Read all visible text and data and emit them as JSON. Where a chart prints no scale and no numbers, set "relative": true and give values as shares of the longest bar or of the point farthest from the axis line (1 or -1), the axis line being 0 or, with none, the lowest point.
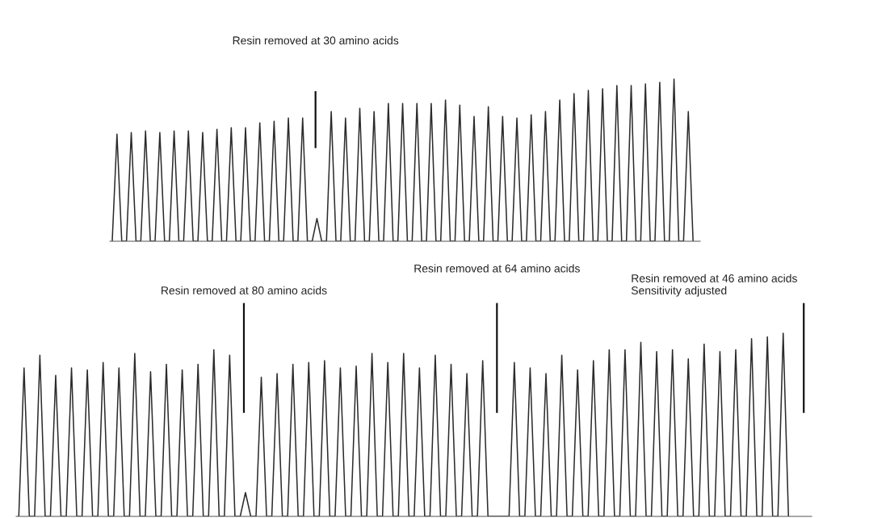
{
  "chart_data": [
    {
      "type": "line",
      "relative": true,
      "color": "#2b2b2b",
      "categories": [
        null,
        null,
        null,
        null,
        null,
        null,
        null,
        null,
        null,
        null,
        null,
        null,
        null,
        null,
        null,
        null,
        null,
        null,
        null,
        null,
        null,
        null,
        null,
        null,
        null,
        null,
        null,
        null,
        null,
        null,
        null,
        null,
        null,
        null,
        null,
        null,
        null,
        null,
        null,
        null,
        null,
        null,
        null,
        null,
        null,
        null,
        null,
        null,
        null,
        null,
        null,
        null,
        null,
        null,
        null,
        null,
        null,
        null,
        null,
        null,
        null,
        null,
        null,
        null,
        null,
        null,
        null,
        null,
        null,
        null,
        null,
        null,
        null,
        null,
        null,
        null,
        null,
        null,
        null,
        null,
        null,
        null,
        null,
        null,
        null,
        null,
        null,
        null,
        null,
        null,
        null,
        null,
        null,
        null,
        null,
        null,
        null,
        null,
        null,
        null,
        null,
        null,
        null,
        null,
        null,
        null,
        null,
        null,
        null,
        null,
        null,
        null,
        null,
        null,
        null,
        null,
        null,
        null,
        null,
        null,
        null,
        null,
        null
      ],
      "values": [
        0,
        0.66,
        0,
        0,
        0.67,
        0,
        0,
        0.68,
        0,
        0,
        0.67,
        0,
        0,
        0.68,
        0,
        0,
        0.68,
        0,
        0,
        0.67,
        0,
        0,
        0.69,
        0,
        0,
        0.7,
        0,
        0,
        0.7,
        0,
        0,
        0.73,
        0,
        0,
        0.74,
        0,
        0,
        0.76,
        0,
        0,
        0.76,
        0,
        0,
        0.14,
        0,
        0,
        0.8,
        0,
        0,
        0.76,
        0,
        0,
        0.82,
        0,
        0,
        0.8,
        0,
        0,
        0.85,
        0,
        0,
        0.85,
        0,
        0,
        0.85,
        0,
        0,
        0.85,
        0,
        0,
        0.87,
        0,
        0,
        0.84,
        0,
        0,
        0.77,
        0,
        0,
        0.83,
        0,
        0,
        0.77,
        0,
        0,
        0.76,
        0,
        0,
        0.78,
        0,
        0,
        0.8,
        0,
        0,
        0.87,
        0,
        0,
        0.91,
        0,
        0,
        0.93,
        0,
        0,
        0.94,
        0,
        0,
        0.96,
        0,
        0,
        0.96,
        0,
        0,
        0.97,
        0,
        0,
        0.98,
        0,
        0,
        1.0,
        0,
        0,
        0.8,
        0
      ],
      "annotations": [
        "Resin removed at 30 amino acids"
      ]
    },
    {
      "type": "line",
      "relative": true,
      "color": "#2b2b2b",
      "categories": [
        null,
        null,
        null,
        null,
        null,
        null,
        null,
        null,
        null,
        null,
        null,
        null,
        null,
        null,
        null,
        null,
        null,
        null,
        null,
        null,
        null,
        null,
        null,
        null,
        null,
        null,
        null,
        null,
        null,
        null,
        null,
        null,
        null,
        null,
        null,
        null,
        null,
        null,
        null,
        null,
        null,
        null,
        null,
        null,
        null,
        null,
        null,
        null,
        null,
        null,
        null,
        null,
        null,
        null,
        null,
        null,
        null,
        null,
        null,
        null,
        null,
        null,
        null,
        null,
        null,
        null,
        null,
        null,
        null,
        null,
        null,
        null,
        null,
        null,
        null,
        null,
        null,
        null,
        null,
        null,
        null,
        null,
        null,
        null,
        null,
        null,
        null,
        null,
        null,
        null,
        null,
        null,
        null,
        null,
        null,
        null,
        null,
        null,
        null,
        null,
        null,
        null,
        null,
        null,
        null,
        null,
        null,
        null,
        null,
        null,
        null,
        null,
        null,
        null,
        null,
        null,
        null,
        null,
        null,
        null,
        null,
        null,
        null,
        null,
        null,
        null,
        null,
        null,
        null,
        null,
        null,
        null,
        null,
        null,
        null,
        null,
        null,
        null,
        null,
        null,
        null,
        null,
        null,
        null,
        null,
        null,
        null
      ],
      "values": [
        0,
        0.81,
        0,
        0,
        0.88,
        0,
        0,
        0.77,
        0,
        0,
        0.81,
        0,
        0,
        0.8,
        0,
        0,
        0.84,
        0,
        0,
        0.81,
        0,
        0,
        0.89,
        0,
        0,
        0.79,
        0,
        0,
        0.83,
        0,
        0,
        0.8,
        0,
        0,
        0.83,
        0,
        0,
        0.91,
        0,
        0,
        0.88,
        0,
        0,
        0.13,
        0,
        0,
        0.76,
        0,
        0,
        0.78,
        0,
        0,
        0.83,
        0,
        0,
        0.84,
        0,
        0,
        0.85,
        0,
        0,
        0.81,
        0,
        0,
        0.82,
        0,
        0,
        0.89,
        0,
        0,
        0.84,
        0,
        0,
        0.89,
        0,
        0,
        0.81,
        0,
        0,
        0.88,
        0,
        0,
        0.83,
        0,
        0,
        0.78,
        0,
        0,
        0.85,
        0,
        0,
        0,
        0,
        0,
        0.84,
        0,
        0,
        0.81,
        0,
        0,
        0.78,
        0,
        0,
        0.88,
        0,
        0,
        0.8,
        0,
        0,
        0.85,
        0,
        0,
        0.91,
        0,
        0,
        0.91,
        0,
        0,
        0.95,
        0,
        0,
        0.9,
        0,
        0,
        0.91,
        0,
        0,
        0.86,
        0,
        0,
        0.94,
        0,
        0,
        0.9,
        0,
        0,
        0.91,
        0,
        0,
        0.97,
        0,
        0,
        0.98,
        0,
        0,
        1.0,
        0
      ],
      "annotations": [
        "Resin removed at 80 amino acids",
        "Resin removed at 64 amino acids",
        "Resin removed at 46 amino acids\nSensitivity adjusted"
      ]
    }
  ]
}
